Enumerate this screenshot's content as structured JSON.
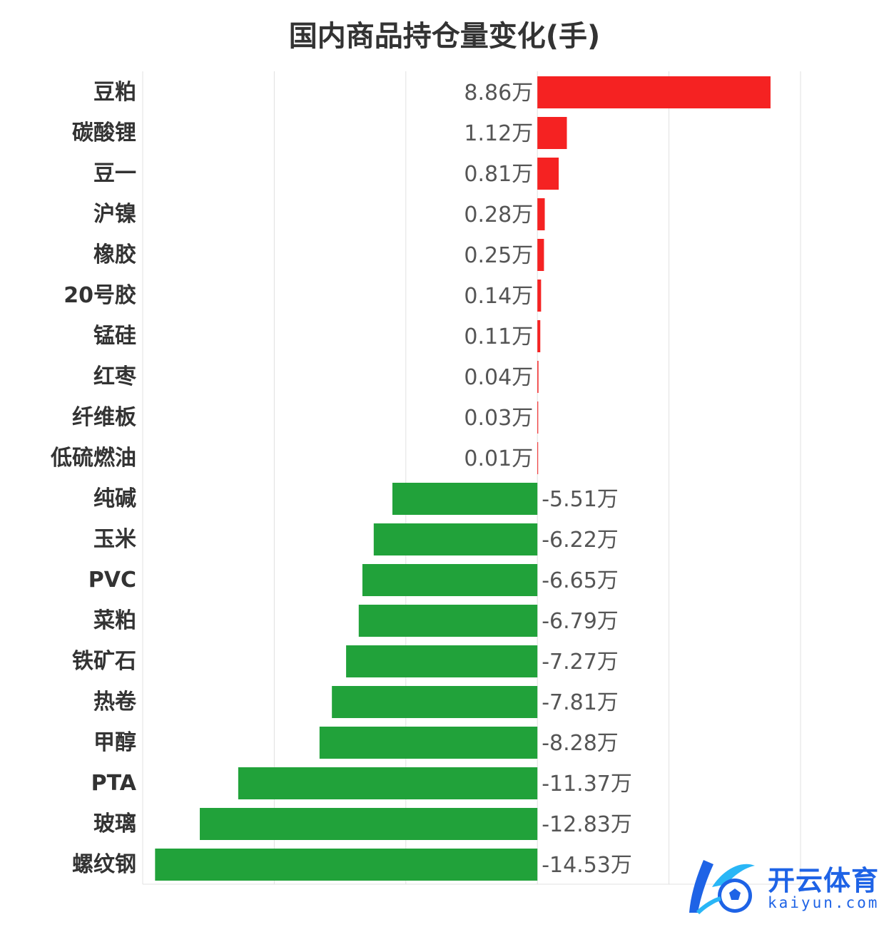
{
  "chart_data": {
    "type": "bar",
    "orientation": "horizontal",
    "title": "国内商品持仓量变化(手)",
    "unit_suffix": "万",
    "categories": [
      "豆粕",
      "碳酸锂",
      "豆一",
      "沪镍",
      "橡胶",
      "20号胶",
      "锰硅",
      "红枣",
      "纤维板",
      "低硫燃油",
      "纯碱",
      "玉米",
      "PVC",
      "菜粕",
      "铁矿石",
      "热卷",
      "甲醇",
      "PTA",
      "玻璃",
      "螺纹钢"
    ],
    "values": [
      8.86,
      1.12,
      0.81,
      0.28,
      0.25,
      0.14,
      0.11,
      0.04,
      0.03,
      0.01,
      -5.51,
      -6.22,
      -6.65,
      -6.79,
      -7.27,
      -7.81,
      -8.28,
      -11.37,
      -12.83,
      -14.53
    ],
    "value_labels": [
      "8.86万",
      "1.12万",
      "0.81万",
      "0.28万",
      "0.25万",
      "0.14万",
      "0.11万",
      "0.04万",
      "0.03万",
      "0.01万",
      "-5.51万",
      "-6.22万",
      "-6.65万",
      "-6.79万",
      "-7.27万",
      "-7.81万",
      "-8.28万",
      "-11.37万",
      "-12.83万",
      "-14.53万"
    ],
    "xlim": [
      -15,
      10
    ],
    "x_gridlines": [
      -15,
      -10,
      -5,
      0,
      5,
      10
    ],
    "grid": true,
    "legend": "none",
    "colors": {
      "positive": "#f52222",
      "negative": "#21a23a",
      "grid": "#e0e0e0"
    }
  },
  "watermark": {
    "cn": "开云体育",
    "en": "kaiyun.com",
    "icon": "kaiyun-logo-icon",
    "color": "#1e63e6"
  }
}
